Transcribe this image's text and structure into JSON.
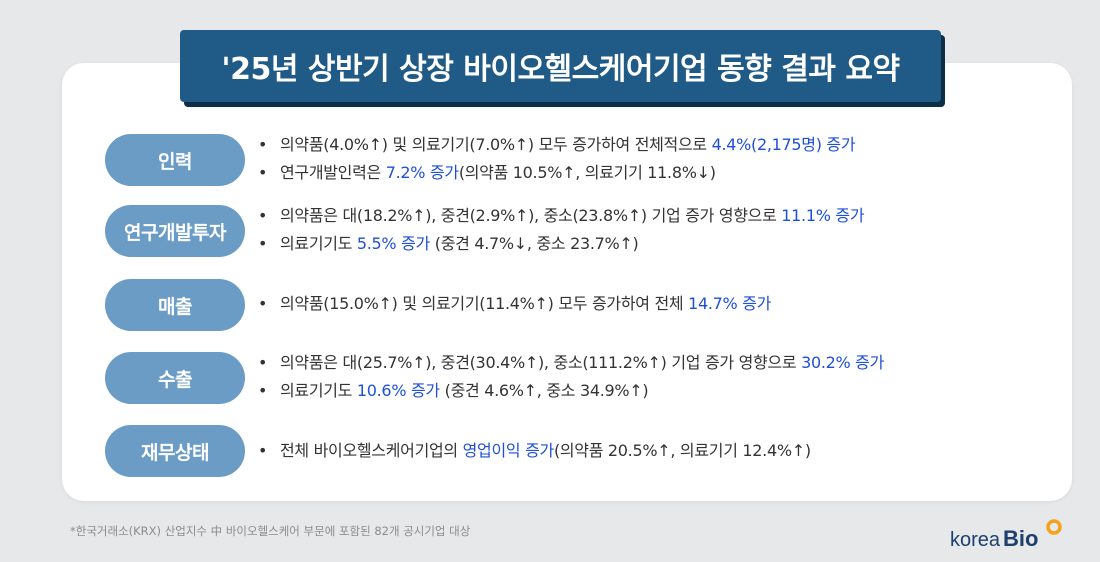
{
  "title": "'25년 상반기 상장 바이오헬스케어기업 동향 결과 요약",
  "sections": [
    {
      "label": "인력",
      "lines": [
        {
          "text": "의약품(4.0%↑) 및 의료기기(7.0%↑) 모두 증가하여 전체적으로 ",
          "hl": "4.4%(2,175명) 증가",
          "after": ""
        },
        {
          "text": "연구개발인력은 ",
          "hl": "7.2% 증가",
          "after": "(의약품 10.5%↑, 의료기기 11.8%↓)"
        }
      ]
    },
    {
      "label": "연구개발투자",
      "lines": [
        {
          "text": "의약품은 대(18.2%↑), 중견(2.9%↑), 중소(23.8%↑) 기업 증가 영향으로 ",
          "hl": "11.1% 증가",
          "after": ""
        },
        {
          "text": "의료기기도 ",
          "hl": "5.5% 증가",
          "after": " (중견 4.7%↓, 중소 23.7%↑)"
        }
      ]
    },
    {
      "label": "매출",
      "lines": [
        {
          "text": "의약품(15.0%↑) 및 의료기기(11.4%↑) 모두 증가하여 전체 ",
          "hl": "14.7% 증가",
          "after": ""
        }
      ]
    },
    {
      "label": "수출",
      "lines": [
        {
          "text": "의약품은 대(25.7%↑), 중견(30.4%↑), 중소(111.2%↑) 기업 증가 영향으로 ",
          "hl": "30.2% 증가",
          "after": ""
        },
        {
          "text": "의료기기도 ",
          "hl": "10.6% 증가",
          "after": " (중견 4.6%↑, 중소 34.9%↑)"
        }
      ]
    },
    {
      "label": "재무상태",
      "lines": [
        {
          "text": "전체 바이오헬스케어기업의 ",
          "hl": "영업이익 증가",
          "after": "(의약품 20.5%↑, 의료기기 12.4%↑)"
        }
      ]
    }
  ],
  "bullet_char": "•",
  "footnote": "*한국거래소(KRX) 산업지수 中 바이오헬스케어 부문에 포함된 82개 공시기업 대상",
  "logo": {
    "part1": "korea",
    "part2": "Bio",
    "icon": "orange-ring-icon"
  },
  "colors": {
    "banner": "#1f5b86",
    "banner_shadow": "#0d2e47",
    "pill": "#6b9cc5",
    "highlight": "#1e4fd8",
    "logo_orange": "#f5a21a",
    "logo_navy": "#1d3f6e"
  }
}
